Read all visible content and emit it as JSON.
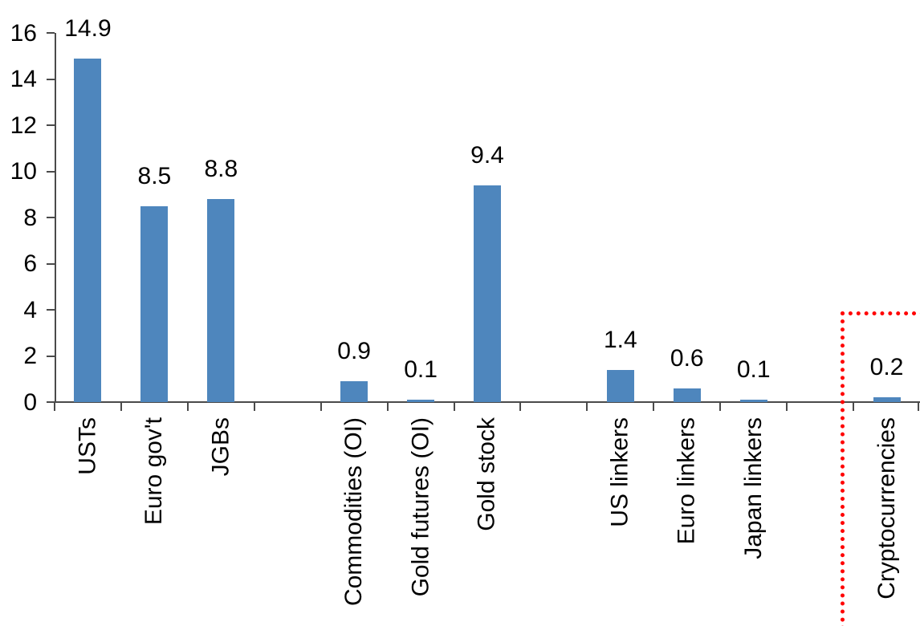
{
  "chart_data": {
    "type": "bar",
    "title": "",
    "xlabel": "",
    "ylabel": "",
    "categories": [
      "USTs",
      "Euro gov't",
      "JGBs",
      "Commodities (OI)",
      "Gold futures (OI)",
      "Gold stock",
      "US linkers",
      "Euro linkers",
      "Japan linkers",
      "Cryptocurrencies"
    ],
    "values": [
      14.9,
      8.5,
      8.8,
      0.9,
      0.1,
      9.4,
      1.4,
      0.6,
      0.1,
      0.2
    ],
    "data_labels": [
      "14.9",
      "8.5",
      "8.8",
      "0.9",
      "0.1",
      "9.4",
      "1.4",
      "0.6",
      "0.1",
      "0.2"
    ],
    "ylim": [
      0,
      16
    ],
    "yticks": [
      0,
      2,
      4,
      6,
      8,
      10,
      12,
      14,
      16
    ],
    "grid": false,
    "legend": "none",
    "bar_color": "#4E86BD",
    "axis_color": "#4a4a4a",
    "text_color": "#000000",
    "slots": [
      0,
      1,
      2,
      4,
      5,
      6,
      8,
      9,
      10,
      12
    ],
    "slot_count": 13,
    "highlight": {
      "category": "Cryptocurrencies",
      "style": "dotted-box",
      "color": "#FF0000"
    }
  }
}
